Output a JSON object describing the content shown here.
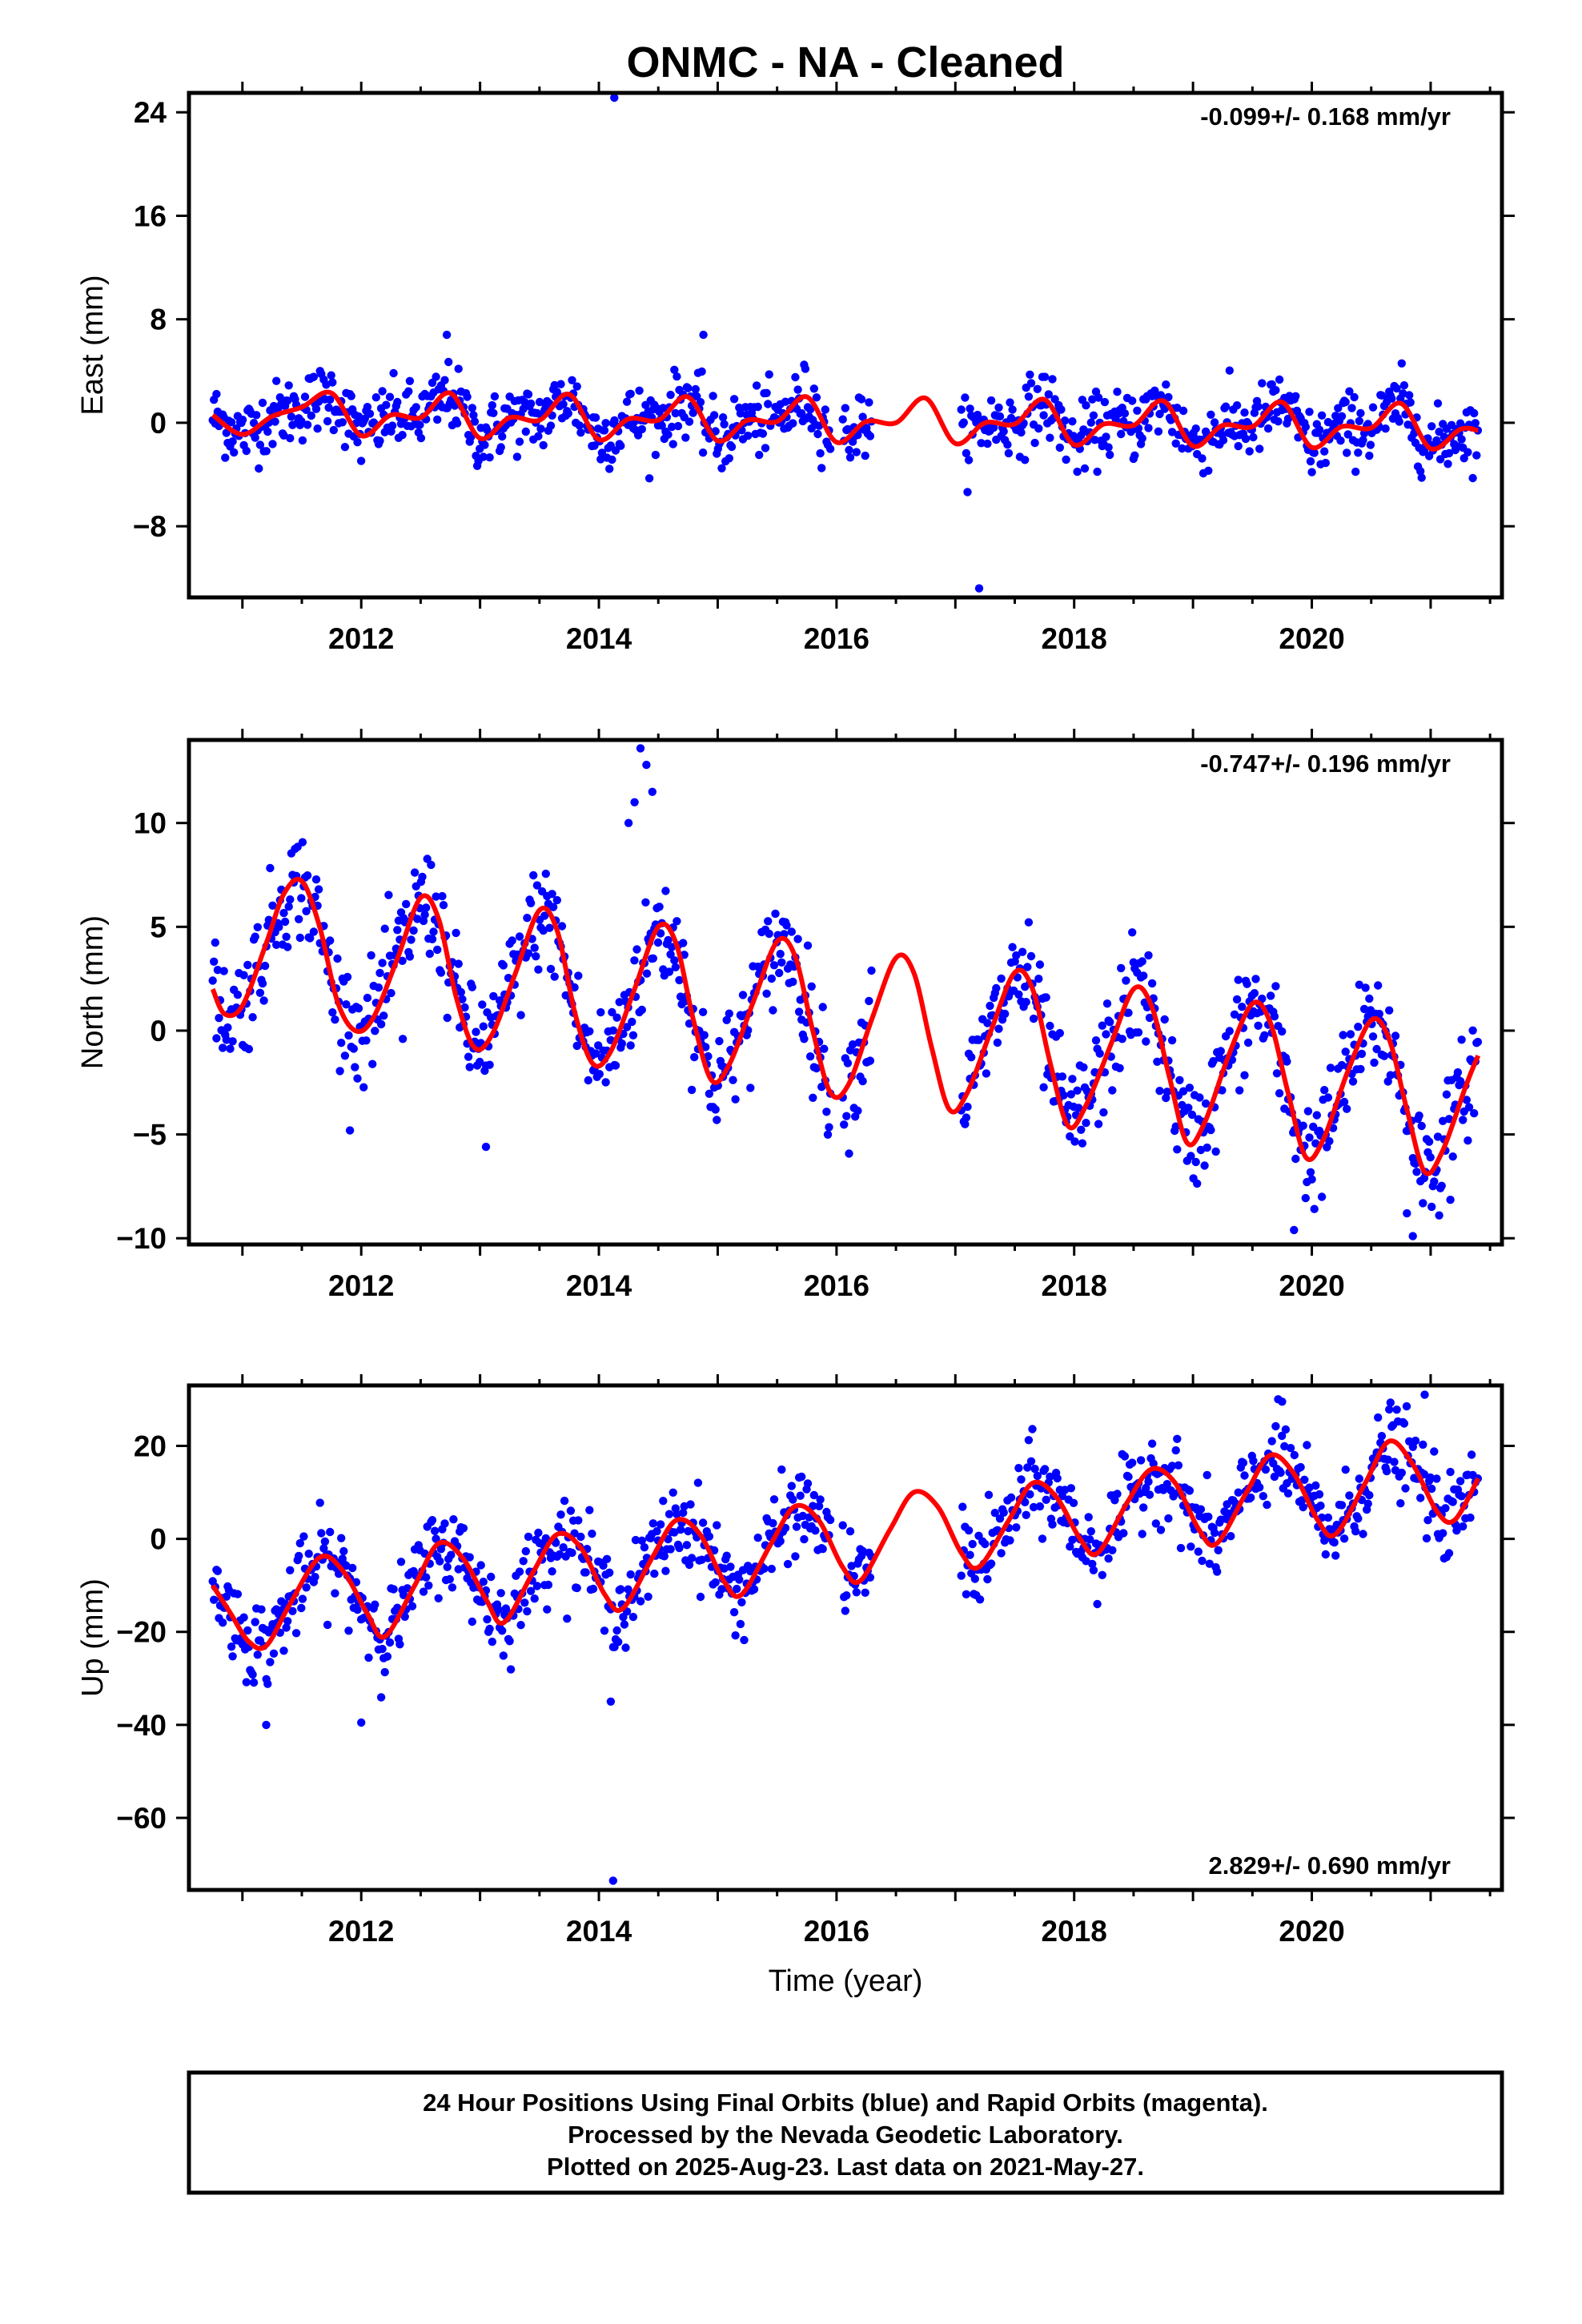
{
  "title": "ONMC  - NA - Cleaned",
  "x_axis_label": "Time (year)",
  "colors": {
    "points": "#0000ff",
    "model": "#ff0000",
    "frame": "#000000"
  },
  "chart_data": [
    {
      "type": "scatter",
      "component": "east",
      "ylabel": "East (mm)",
      "rate_text": "-0.099+/- 0.168 mm/yr",
      "xlim": [
        2010.55,
        2021.6
      ],
      "ylim": [
        -13.5,
        25.5
      ],
      "yticks": [
        24,
        16,
        8,
        0,
        -8
      ],
      "ytick_labels": [
        "24",
        "16",
        "8",
        "0",
        "−8"
      ],
      "xticks": [
        2012,
        2014,
        2016,
        2018,
        2020
      ],
      "xtick_labels": [
        "2012",
        "2014",
        "2016",
        "2018",
        "2020"
      ],
      "model_curve": {
        "x": [
          2010.75,
          2011.0,
          2011.25,
          2011.5,
          2011.75,
          2012.0,
          2012.25,
          2012.5,
          2012.75,
          2013.0,
          2013.25,
          2013.5,
          2013.75,
          2014.0,
          2014.25,
          2014.5,
          2014.75,
          2015.0,
          2015.25,
          2015.5,
          2015.75,
          2016.0,
          2016.25,
          2016.5,
          2016.75,
          2017.0,
          2017.25,
          2017.5,
          2017.75,
          2018.0,
          2018.25,
          2018.5,
          2018.75,
          2019.0,
          2019.25,
          2019.5,
          2019.75,
          2020.0,
          2020.25,
          2020.5,
          2020.75,
          2021.0,
          2021.25,
          2021.4
        ],
        "y": [
          0.6,
          -0.9,
          0.5,
          1.2,
          2.3,
          -1.0,
          0.6,
          0.4,
          2.3,
          -1.2,
          0.4,
          0.2,
          2.2,
          -1.3,
          0.3,
          0.2,
          2.0,
          -1.4,
          0.2,
          0.1,
          2.0,
          -1.5,
          0.1,
          0.0,
          1.9,
          -1.6,
          0.0,
          -0.1,
          1.8,
          -1.7,
          -0.1,
          -0.2,
          1.7,
          -1.8,
          -0.2,
          -0.3,
          1.6,
          -1.9,
          -0.3,
          -0.4,
          1.5,
          -2.0,
          -0.5,
          -0.6
        ]
      },
      "scatter": {
        "sigma": 1.3,
        "gaps": [
          [
            2015.95,
            2016.05
          ],
          [
            2016.3,
            2017.05
          ]
        ]
      },
      "outliers": [
        {
          "x": 2014.13,
          "y": 25.4
        },
        {
          "x": 2017.2,
          "y": -12.8
        },
        {
          "x": 2014.88,
          "y": 6.8
        },
        {
          "x": 2012.72,
          "y": 6.8
        }
      ]
    },
    {
      "type": "scatter",
      "component": "north",
      "ylabel": "North (mm)",
      "rate_text": "-0.747+/- 0.196 mm/yr",
      "xlim": [
        2010.55,
        2021.6
      ],
      "ylim": [
        -10.3,
        14.0
      ],
      "yticks": [
        10,
        5,
        0,
        -5,
        -10
      ],
      "ytick_labels": [
        "10",
        "5",
        "0",
        "−5",
        "−10"
      ],
      "xticks": [
        2012,
        2014,
        2016,
        2018,
        2020
      ],
      "xtick_labels": [
        "2012",
        "2014",
        "2016",
        "2018",
        "2020"
      ],
      "model_curve": {
        "x": [
          2010.75,
          2010.85,
          2011.0,
          2011.2,
          2011.35,
          2011.5,
          2011.65,
          2011.8,
          2011.95,
          2012.1,
          2012.3,
          2012.5,
          2012.65,
          2012.8,
          2012.95,
          2013.1,
          2013.3,
          2013.5,
          2013.65,
          2013.8,
          2013.95,
          2014.1,
          2014.3,
          2014.5,
          2014.65,
          2014.8,
          2014.95,
          2015.1,
          2015.3,
          2015.5,
          2015.65,
          2015.8,
          2015.95,
          2016.1,
          2016.3,
          2016.5,
          2016.65,
          2016.8,
          2016.95,
          2017.1,
          2017.3,
          2017.5,
          2017.65,
          2017.8,
          2017.95,
          2018.1,
          2018.3,
          2018.5,
          2018.65,
          2018.8,
          2018.95,
          2019.1,
          2019.3,
          2019.5,
          2019.65,
          2019.8,
          2019.95,
          2020.1,
          2020.3,
          2020.5,
          2020.65,
          2020.8,
          2020.95,
          2021.1,
          2021.3,
          2021.4
        ],
        "y": [
          2.0,
          0.8,
          1.2,
          4.2,
          6.6,
          7.2,
          5.0,
          1.4,
          0.0,
          0.6,
          3.4,
          6.4,
          5.4,
          1.6,
          -0.8,
          -0.2,
          2.8,
          5.8,
          4.8,
          0.8,
          -1.6,
          -1.0,
          2.0,
          5.0,
          4.2,
          0.4,
          -2.4,
          -1.6,
          1.4,
          4.3,
          3.6,
          0.0,
          -3.0,
          -2.6,
          0.6,
          3.5,
          2.8,
          -0.8,
          -3.8,
          -3.0,
          0.0,
          2.8,
          2.0,
          -1.6,
          -4.6,
          -3.6,
          -0.8,
          2.0,
          1.2,
          -2.2,
          -5.4,
          -4.4,
          -1.2,
          1.3,
          0.4,
          -3.0,
          -6.1,
          -5.2,
          -2.0,
          0.5,
          -0.4,
          -3.8,
          -6.8,
          -5.8,
          -2.6,
          -1.2
        ]
      },
      "scatter": {
        "sigma": 1.3,
        "gaps": [
          [
            2015.95,
            2016.05
          ],
          [
            2016.3,
            2017.05
          ]
        ]
      },
      "outliers": [
        {
          "x": 2014.35,
          "y": 13.6
        },
        {
          "x": 2014.4,
          "y": 12.8
        },
        {
          "x": 2014.25,
          "y": 10.0
        },
        {
          "x": 2014.3,
          "y": 11.0
        },
        {
          "x": 2014.45,
          "y": 11.5
        },
        {
          "x": 2013.05,
          "y": -5.6
        },
        {
          "x": 2019.85,
          "y": -9.6
        },
        {
          "x": 2020.85,
          "y": -9.9
        },
        {
          "x": 2020.8,
          "y": -8.8
        },
        {
          "x": 2012.35,
          "y": -0.4
        }
      ]
    },
    {
      "type": "scatter",
      "component": "up",
      "ylabel": "Up (mm)",
      "rate_text": "2.829+/- 0.690 mm/yr",
      "xlim": [
        2010.55,
        2021.6
      ],
      "ylim": [
        -75.5,
        33.0
      ],
      "yticks": [
        20,
        0,
        -20,
        -40,
        -60
      ],
      "ytick_labels": [
        "20",
        "0",
        "−20",
        "−40",
        "−60"
      ],
      "xticks": [
        2012,
        2014,
        2016,
        2018,
        2020
      ],
      "xtick_labels": [
        "2012",
        "2014",
        "2016",
        "2018",
        "2020"
      ],
      "model_curve": {
        "x": [
          2010.75,
          2010.9,
          2011.05,
          2011.2,
          2011.4,
          2011.65,
          2011.85,
          2012.05,
          2012.2,
          2012.45,
          2012.65,
          2012.85,
          2013.05,
          2013.2,
          2013.45,
          2013.65,
          2013.85,
          2014.05,
          2014.2,
          2014.45,
          2014.65,
          2014.85,
          2015.05,
          2015.2,
          2015.45,
          2015.65,
          2015.85,
          2016.05,
          2016.2,
          2016.45,
          2016.65,
          2016.85,
          2017.05,
          2017.2,
          2017.45,
          2017.65,
          2017.85,
          2018.05,
          2018.2,
          2018.45,
          2018.65,
          2018.85,
          2019.05,
          2019.2,
          2019.45,
          2019.65,
          2019.85,
          2020.05,
          2020.2,
          2020.45,
          2020.65,
          2020.85,
          2021.05,
          2021.2,
          2021.4
        ],
        "y": [
          -10,
          -16,
          -22,
          -23,
          -14,
          -4,
          -7,
          -16,
          -21,
          -10,
          -1,
          -4,
          -13,
          -18,
          -7,
          1,
          -2,
          -12,
          -15,
          -4,
          4,
          1,
          -9,
          -12,
          -1,
          7,
          4,
          -6,
          -9,
          2,
          10,
          7,
          -3,
          -6,
          4,
          12,
          9,
          0,
          -3,
          8,
          15,
          12,
          2,
          -1,
          10,
          18,
          14,
          4,
          1,
          12,
          21,
          16,
          6,
          4,
          13
        ]
      },
      "scatter": {
        "sigma": 4.5,
        "gaps": [
          [
            2015.95,
            2016.05
          ],
          [
            2016.3,
            2017.05
          ]
        ]
      },
      "outliers": [
        {
          "x": 2014.12,
          "y": -73.5
        },
        {
          "x": 2012.0,
          "y": -39.5
        },
        {
          "x": 2011.2,
          "y": -40.0
        },
        {
          "x": 2014.1,
          "y": -35.0
        },
        {
          "x": 2020.95,
          "y": 31.0
        },
        {
          "x": 2019.75,
          "y": 29.5
        }
      ]
    }
  ],
  "footer": {
    "line1": "24 Hour Positions Using Final Orbits (blue) and Rapid Orbits (magenta).",
    "line2": "Processed by the Nevada Geodetic Laboratory.",
    "line3": "Plotted on 2025-Aug-23. Last data on 2021-May-27."
  }
}
